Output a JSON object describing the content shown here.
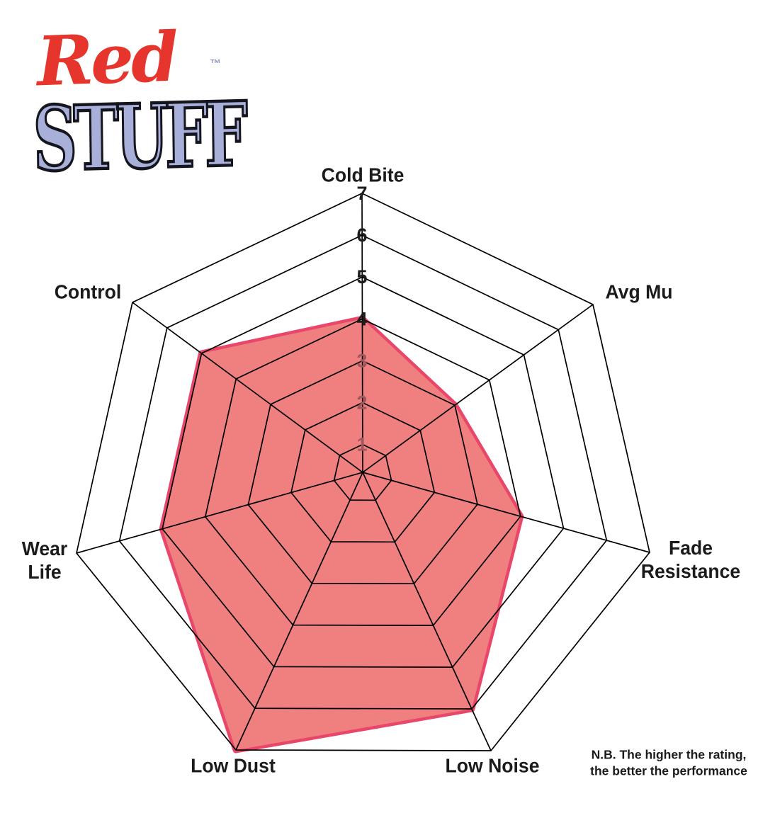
{
  "logo": {
    "red_text": "Red",
    "stuff_text": "STUFF",
    "trademark": "™",
    "red_color": "#E6352C",
    "stuff_color": "#A8AFD9"
  },
  "note": {
    "line1": "N.B. The higher the rating,",
    "line2": "the better the performance"
  },
  "chart_data": {
    "type": "radar",
    "title": "",
    "categories": [
      "Cold Bite",
      "Avg Mu",
      "Fade Resistance",
      "Low Noise",
      "Low Dust",
      "Wear Life",
      "Control"
    ],
    "series": [
      {
        "name": "RedStuff",
        "values": [
          4,
          3,
          4,
          6,
          7,
          5,
          5
        ]
      }
    ],
    "scale_min": 0,
    "scale_max": 7,
    "tick_labels": [
      "1",
      "2",
      "3",
      "4",
      "5",
      "6",
      "7"
    ],
    "ring_count": 7,
    "grid": "heptagonal web, black lines",
    "legend_position": "none",
    "colors": {
      "fill": "#F08080",
      "stroke": "#E8476A",
      "grid": "#000000",
      "tick_dark": "#1C1C1C",
      "tick_muted": "#9E575D",
      "label": "#1B1B1B"
    }
  }
}
